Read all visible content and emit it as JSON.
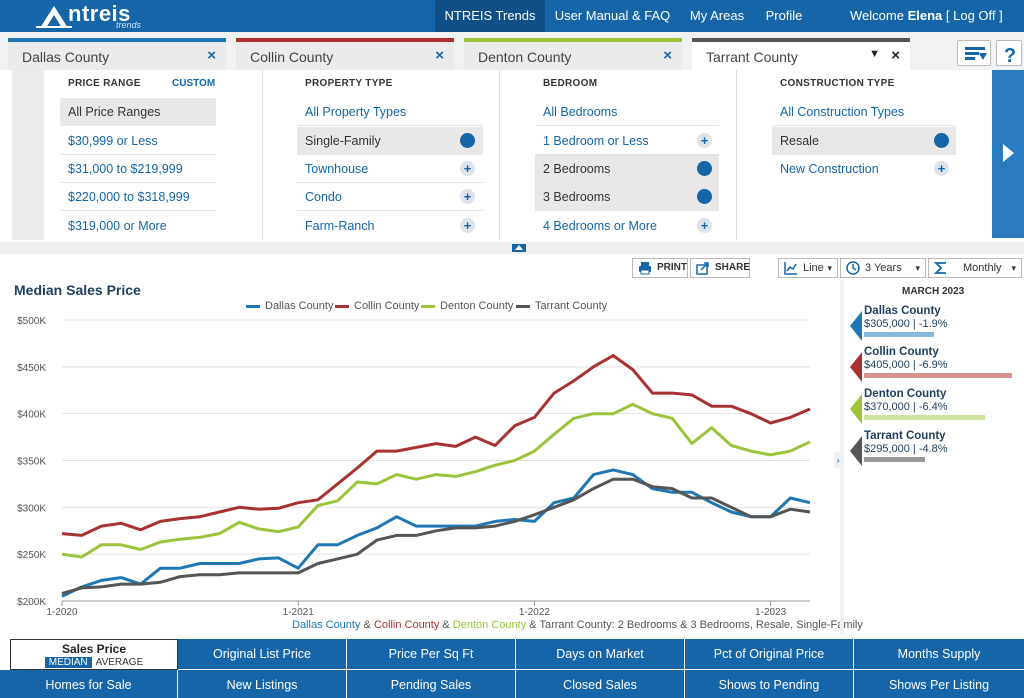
{
  "nav": {
    "logo_text": "ntreis",
    "logo_sub": "trends",
    "items": [
      {
        "label": "NTREIS Trends",
        "active": true
      },
      {
        "label": "User Manual & FAQ",
        "active": false
      },
      {
        "label": "My Areas",
        "active": false
      },
      {
        "label": "Profile",
        "active": false
      }
    ],
    "welcome_prefix": "Welcome",
    "user": "Elena",
    "logoff": "[ Log Off ]"
  },
  "tabs": [
    {
      "label": "Dallas County",
      "close": "×",
      "color": "#1f77b4"
    },
    {
      "label": "Collin County",
      "close": "×",
      "color": "#a83232"
    },
    {
      "label": "Denton County",
      "close": "×",
      "color": "#9bc43a"
    },
    {
      "label": "Tarrant County",
      "close": "×",
      "color": "#555555",
      "dropdown": "▼"
    }
  ],
  "filters": {
    "price": {
      "heading": "PRICE RANGE",
      "custom": "CUSTOM",
      "items": [
        "All Price Ranges",
        "$30,999 or Less",
        "$31,000 to $219,999",
        "$220,000 to $318,999",
        "$319,000 or More"
      ]
    },
    "property": {
      "heading": "PROPERTY TYPE",
      "items": [
        "All Property Types",
        "Single-Family",
        "Townhouse",
        "Condo",
        "Farm-Ranch"
      ]
    },
    "bedroom": {
      "heading": "BEDROOM",
      "items": [
        "All Bedrooms",
        "1 Bedroom or Less",
        "2 Bedrooms",
        "3 Bedrooms",
        "4 Bedrooms or More"
      ]
    },
    "construction": {
      "heading": "CONSTRUCTION TYPE",
      "items": [
        "All Construction Types",
        "Resale",
        "New Construction"
      ]
    },
    "plus_glyph": "+"
  },
  "toolbar": {
    "print": "PRINT",
    "share": "SHARE",
    "chart_type": "Line",
    "period": "3 Years",
    "interval": "Monthly",
    "caret": "▾"
  },
  "chart_data": {
    "type": "line",
    "title": "Median Sales Price",
    "x_tick_labels": [
      "1-2020",
      "1-2021",
      "1-2022",
      "1-2023"
    ],
    "x_start": "2020-01",
    "x_end": "2023-03",
    "y_tick_labels": [
      "$200K",
      "$250K",
      "$300K",
      "$350K",
      "$400K",
      "$450K",
      "$500K"
    ],
    "ylim": [
      200000,
      500000
    ],
    "grid": true,
    "legend_position": "top-center",
    "series": [
      {
        "name": "Dallas County",
        "color": "#1f77b4",
        "values": [
          205000,
          215000,
          222000,
          225000,
          218000,
          235000,
          235000,
          240000,
          240000,
          240000,
          245000,
          246000,
          235000,
          260000,
          260000,
          270000,
          278000,
          290000,
          280000,
          280000,
          280000,
          280000,
          285000,
          287000,
          285000,
          305000,
          310000,
          335000,
          340000,
          335000,
          320000,
          316000,
          316000,
          305000,
          295000,
          290000,
          290000,
          310000,
          305000
        ]
      },
      {
        "name": "Collin County",
        "color": "#a83232",
        "values": [
          272000,
          270000,
          280000,
          283000,
          276000,
          285000,
          288000,
          290000,
          295000,
          300000,
          298000,
          299000,
          305000,
          308000,
          325000,
          342000,
          360000,
          360000,
          364000,
          368000,
          365000,
          375000,
          366000,
          387000,
          396000,
          422000,
          435000,
          450000,
          462000,
          447000,
          422000,
          422000,
          420000,
          408000,
          408000,
          400000,
          390000,
          396000,
          405000
        ]
      },
      {
        "name": "Denton County",
        "color": "#9bc43a",
        "values": [
          250000,
          247000,
          260000,
          260000,
          255000,
          263000,
          266000,
          268000,
          272000,
          284000,
          277000,
          274000,
          279000,
          302000,
          307000,
          327000,
          325000,
          335000,
          330000,
          335000,
          333000,
          338000,
          345000,
          350000,
          360000,
          378000,
          395000,
          400000,
          400000,
          410000,
          400000,
          395000,
          368000,
          385000,
          366000,
          360000,
          356000,
          360000,
          370000
        ]
      },
      {
        "name": "Tarrant County",
        "color": "#555555",
        "values": [
          208000,
          214000,
          215000,
          218000,
          218000,
          220000,
          226000,
          228000,
          228000,
          230000,
          230000,
          230000,
          230000,
          240000,
          245000,
          250000,
          265000,
          270000,
          270000,
          275000,
          278000,
          278000,
          280000,
          285000,
          292000,
          300000,
          308000,
          320000,
          330000,
          330000,
          322000,
          320000,
          310000,
          310000,
          300000,
          290000,
          290000,
          298000,
          295000
        ]
      }
    ],
    "caption_parts": [
      {
        "text": "Dallas County",
        "color": "#1f77b4"
      },
      {
        "text": " & ",
        "color": "#555555"
      },
      {
        "text": "Collin County",
        "color": "#a83232"
      },
      {
        "text": " & ",
        "color": "#555555"
      },
      {
        "text": "Denton County",
        "color": "#9bc43a"
      },
      {
        "text": " & Tarrant County: 2 Bedrooms & 3 Bedrooms, Resale, Single-Family",
        "color": "#555555"
      }
    ]
  },
  "side": {
    "heading": "MARCH 2023",
    "toggle": "›",
    "items": [
      {
        "name": "Dallas County",
        "value": "$305,000 | -1.9%",
        "color": "#1f77b4",
        "bar_color": "#8ab8dd",
        "bar_fraction": 0.41
      },
      {
        "name": "Collin County",
        "value": "$405,000 | -6.9%",
        "color": "#a83232",
        "bar_color": "#d49590",
        "bar_fraction": 0.87
      },
      {
        "name": "Denton County",
        "value": "$370,000 | -6.4%",
        "color": "#9bc43a",
        "bar_color": "#cfe29b",
        "bar_fraction": 0.71
      },
      {
        "name": "Tarrant County",
        "value": "$295,000 | -4.8%",
        "color": "#555555",
        "bar_color": "#999999",
        "bar_fraction": 0.36
      }
    ]
  },
  "metrics": {
    "selected": {
      "title": "Sales Price",
      "opt_on": "MEDIAN",
      "opt_off": "AVERAGE"
    },
    "row1": [
      "Original List Price",
      "Price Per Sq Ft",
      "Days on Market",
      "Pct of Original Price",
      "Months Supply"
    ],
    "row2": [
      "Homes for Sale",
      "New Listings",
      "Pending Sales",
      "Closed Sales",
      "Shows to Pending",
      "Shows Per Listing"
    ]
  },
  "colors": {
    "brand": "#1565a8"
  }
}
